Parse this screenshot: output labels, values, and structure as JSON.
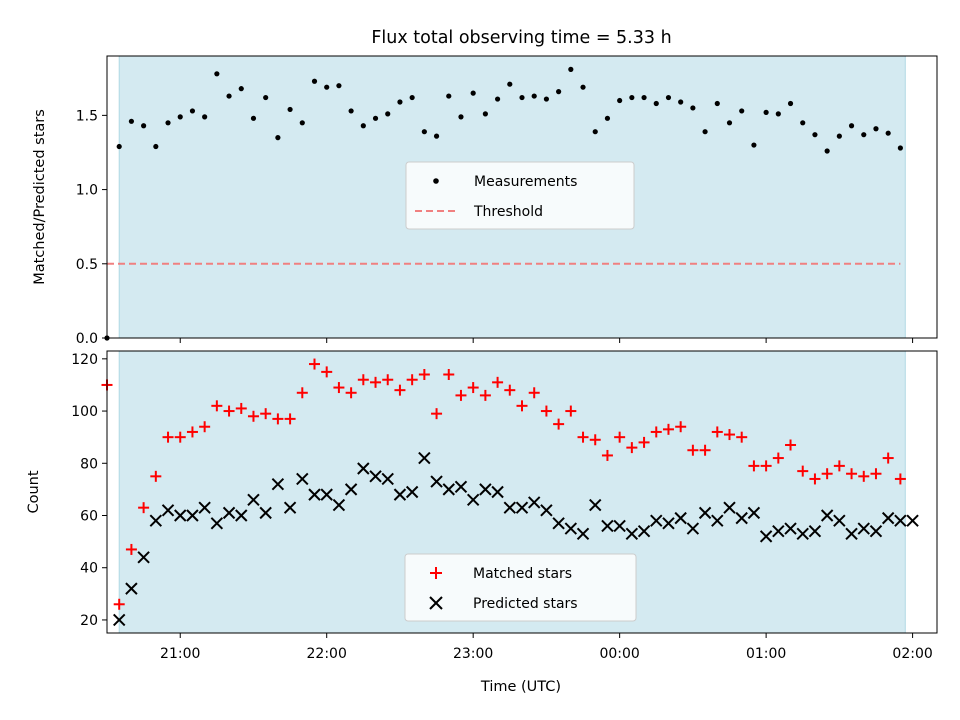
{
  "title": "Flux total observing time = 5.33 h",
  "xlabel": "Time (UTC)",
  "colors": {
    "observing_span": "#d4eaf1",
    "measurements": "#000000",
    "threshold": "#f08080",
    "matched": "#ff0000",
    "predicted": "#000000"
  },
  "chart_data": [
    {
      "type": "scatter",
      "panel": "top",
      "ylabel": "Matched/Predicted stars",
      "xlim": [
        "20:30",
        "02:10"
      ],
      "ylim": [
        0,
        1.9
      ],
      "yticks": [
        0.0,
        0.5,
        1.0,
        1.5
      ],
      "ytick_labels": [
        "0.0",
        "0.5",
        "1.0",
        "1.5"
      ],
      "observing_span": [
        "20:35",
        "01:57"
      ],
      "threshold": 0.5,
      "legend": {
        "position": "center",
        "items": [
          "Measurements",
          "Threshold"
        ]
      },
      "series": [
        {
          "name": "Measurements",
          "marker": "dot",
          "x": [
            "20:30",
            "20:35",
            "20:40",
            "20:45",
            "20:50",
            "20:55",
            "21:00",
            "21:05",
            "21:10",
            "21:15",
            "21:20",
            "21:25",
            "21:30",
            "21:35",
            "21:40",
            "21:45",
            "21:50",
            "21:55",
            "22:00",
            "22:05",
            "22:10",
            "22:15",
            "22:20",
            "22:25",
            "22:30",
            "22:35",
            "22:40",
            "22:45",
            "22:50",
            "22:55",
            "23:00",
            "23:05",
            "23:10",
            "23:15",
            "23:20",
            "23:25",
            "23:30",
            "23:35",
            "23:40",
            "23:45",
            "23:50",
            "23:55",
            "00:00",
            "00:05",
            "00:10",
            "00:15",
            "00:20",
            "00:25",
            "00:30",
            "00:35",
            "00:40",
            "00:45",
            "00:50",
            "00:55",
            "01:00",
            "01:05",
            "01:10",
            "01:15",
            "01:20",
            "01:25",
            "01:30",
            "01:35",
            "01:40",
            "01:45",
            "01:50",
            "01:55"
          ],
          "y": [
            0.0,
            1.29,
            1.46,
            1.43,
            1.29,
            1.45,
            1.49,
            1.53,
            1.49,
            1.78,
            1.63,
            1.68,
            1.48,
            1.62,
            1.35,
            1.54,
            1.45,
            1.73,
            1.69,
            1.7,
            1.53,
            1.43,
            1.48,
            1.51,
            1.59,
            1.62,
            1.39,
            1.36,
            1.63,
            1.49,
            1.65,
            1.51,
            1.61,
            1.71,
            1.62,
            1.63,
            1.61,
            1.66,
            1.81,
            1.69,
            1.39,
            1.48,
            1.6,
            1.62,
            1.62,
            1.58,
            1.62,
            1.59,
            1.55,
            1.39,
            1.58,
            1.45,
            1.53,
            1.3,
            1.52,
            1.51,
            1.58,
            1.45,
            1.37,
            1.26,
            1.36,
            1.43,
            1.37,
            1.41,
            1.38,
            1.28
          ]
        }
      ]
    },
    {
      "type": "scatter",
      "panel": "bottom",
      "ylabel": "Count",
      "xlim": [
        "20:30",
        "02:10"
      ],
      "ylim": [
        15,
        123
      ],
      "yticks": [
        20,
        40,
        60,
        80,
        100,
        120
      ],
      "ytick_labels": [
        "20",
        "40",
        "60",
        "80",
        "100",
        "120"
      ],
      "xticks": [
        "21:00",
        "22:00",
        "23:00",
        "00:00",
        "01:00",
        "02:00"
      ],
      "observing_span": [
        "20:35",
        "01:57"
      ],
      "legend": {
        "position": "bottom-center",
        "items": [
          "Matched stars",
          "Predicted stars"
        ]
      },
      "series": [
        {
          "name": "Matched stars",
          "marker": "plus",
          "x": [
            "20:30",
            "20:35",
            "20:40",
            "20:45",
            "20:50",
            "20:55",
            "21:00",
            "21:05",
            "21:10",
            "21:15",
            "21:20",
            "21:25",
            "21:30",
            "21:35",
            "21:40",
            "21:45",
            "21:50",
            "21:55",
            "22:00",
            "22:05",
            "22:10",
            "22:15",
            "22:20",
            "22:25",
            "22:30",
            "22:35",
            "22:40",
            "22:45",
            "22:50",
            "22:55",
            "23:00",
            "23:05",
            "23:10",
            "23:15",
            "23:20",
            "23:25",
            "23:30",
            "23:35",
            "23:40",
            "23:45",
            "23:50",
            "23:55",
            "00:00",
            "00:05",
            "00:10",
            "00:15",
            "00:20",
            "00:25",
            "00:30",
            "00:35",
            "00:40",
            "00:45",
            "00:50",
            "00:55",
            "01:00",
            "01:05",
            "01:10",
            "01:15",
            "01:20",
            "01:25",
            "01:30",
            "01:35",
            "01:40",
            "01:45",
            "01:50",
            "01:55"
          ],
          "y": [
            110,
            26,
            47,
            63,
            75,
            90,
            90,
            92,
            94,
            102,
            100,
            101,
            98,
            99,
            97,
            97,
            107,
            118,
            115,
            109,
            107,
            112,
            111,
            112,
            108,
            112,
            114,
            99,
            114,
            106,
            109,
            106,
            111,
            108,
            102,
            107,
            100,
            95,
            100,
            90,
            89,
            83,
            90,
            86,
            88,
            92,
            93,
            94,
            85,
            85,
            92,
            91,
            90,
            79,
            79,
            82,
            87,
            77,
            74,
            76,
            79,
            76,
            75,
            76,
            82,
            74
          ]
        },
        {
          "name": "Predicted stars",
          "marker": "x",
          "x": [
            "20:35",
            "20:40",
            "20:45",
            "20:50",
            "20:55",
            "21:00",
            "21:05",
            "21:10",
            "21:15",
            "21:20",
            "21:25",
            "21:30",
            "21:35",
            "21:40",
            "21:45",
            "21:50",
            "21:55",
            "22:00",
            "22:05",
            "22:10",
            "22:15",
            "22:20",
            "22:25",
            "22:30",
            "22:35",
            "22:40",
            "22:45",
            "22:50",
            "22:55",
            "23:00",
            "23:05",
            "23:10",
            "23:15",
            "23:20",
            "23:25",
            "23:30",
            "23:35",
            "23:40",
            "23:45",
            "23:50",
            "23:55",
            "00:00",
            "00:05",
            "00:10",
            "00:15",
            "00:20",
            "00:25",
            "00:30",
            "00:35",
            "00:40",
            "00:45",
            "00:50",
            "00:55",
            "01:00",
            "01:05",
            "01:10",
            "01:15",
            "01:20",
            "01:25",
            "01:30",
            "01:35",
            "01:40",
            "01:45",
            "01:50",
            "01:55",
            "02:00"
          ],
          "y": [
            20,
            32,
            44,
            58,
            62,
            60,
            60,
            63,
            57,
            61,
            60,
            66,
            61,
            72,
            63,
            74,
            68,
            68,
            64,
            70,
            78,
            75,
            74,
            68,
            69,
            82,
            73,
            70,
            71,
            66,
            70,
            69,
            63,
            63,
            65,
            62,
            57,
            55,
            53,
            64,
            56,
            56,
            53,
            54,
            58,
            57,
            59,
            55,
            61,
            58,
            63,
            59,
            61,
            52,
            54,
            55,
            53,
            54,
            60,
            58,
            53,
            55,
            54,
            59,
            58,
            58
          ]
        }
      ]
    }
  ]
}
